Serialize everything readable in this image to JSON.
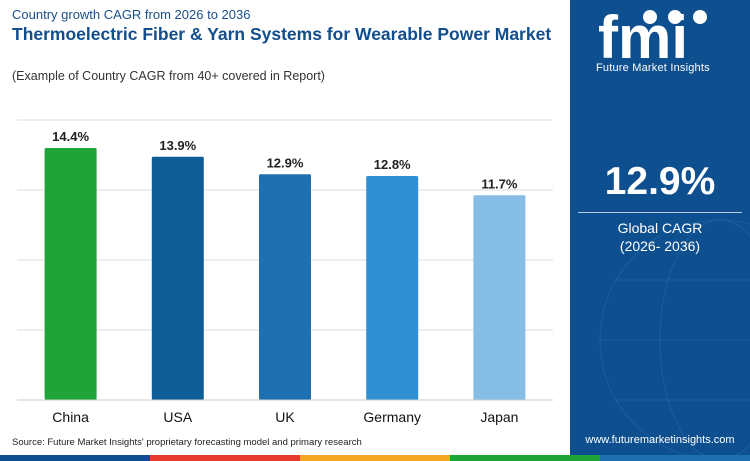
{
  "header": {
    "subtitle": "Country growth CAGR from 2026 to 2036",
    "title": "Thermoelectric Fiber & Yarn Systems for Wearable Power Market",
    "caption": "(Example of Country CAGR from 40+ covered in Report)"
  },
  "source": "Source: Future Market Insights' proprietary forecasting model and primary research",
  "brand": {
    "logo_text": "fmi",
    "name": "Future Market Insights",
    "url": "www.futuremarketinsights.com"
  },
  "summary": {
    "value": "12.9%",
    "label": "Global CAGR",
    "period": "(2026- 2036)"
  },
  "colors": {
    "panel": "#0e4f8f",
    "bars": [
      "#1fa43a",
      "#0f5d96",
      "#1e70b0",
      "#3190d4",
      "#86bde4"
    ],
    "strip": [
      "#0e4f8f",
      "#e63b2e",
      "#f5a623",
      "#1fa43a",
      "#1e70b0"
    ]
  },
  "chart_data": {
    "type": "bar",
    "categories": [
      "China",
      "USA",
      "UK",
      "Germany",
      "Japan"
    ],
    "values": [
      14.4,
      13.9,
      12.9,
      12.8,
      11.7
    ],
    "labels": [
      "14.4%",
      "13.9%",
      "12.9%",
      "12.8%",
      "11.7%"
    ],
    "ylim": [
      0,
      16
    ],
    "grid": true,
    "legend": "none"
  }
}
